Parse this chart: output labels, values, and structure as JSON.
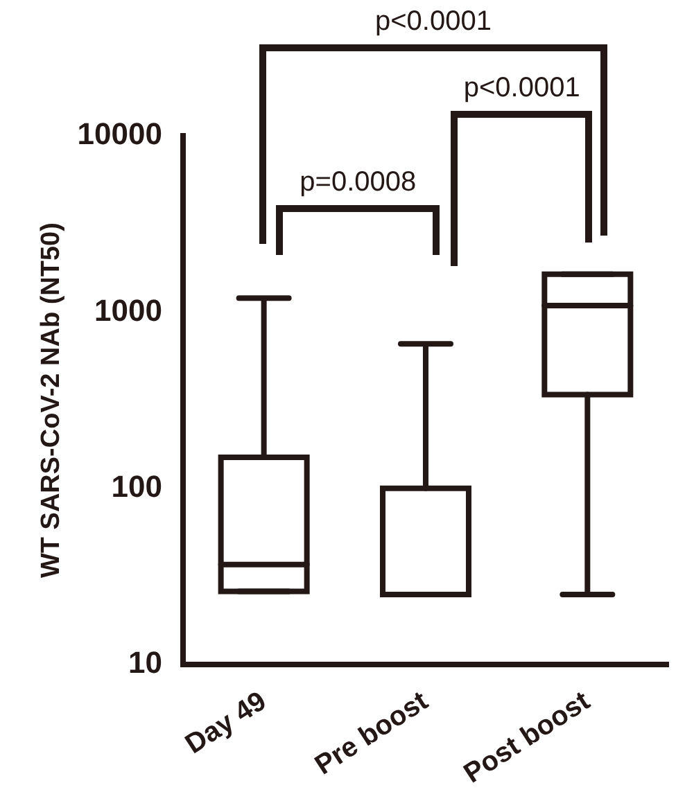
{
  "chart_data": {
    "type": "box",
    "ylabel": "WT SARS-CoV-2 NAb (NT50)",
    "categories": [
      "Day 49",
      "Pre boost",
      "Post boost"
    ],
    "color": "#231815",
    "boxes": [
      {
        "low": 26,
        "q1": 26,
        "median": 37,
        "q3": 150,
        "high": 1200
      },
      {
        "low": 25,
        "q1": 25,
        "median": 25,
        "q3": 100,
        "high": 660
      },
      {
        "low": 25,
        "q1": 340,
        "median": 1090,
        "q3": 1640,
        "high": 1640
      }
    ],
    "log": "y",
    "ylim": [
      10,
      10000
    ],
    "yticks": [
      10,
      100,
      1000,
      10000
    ],
    "annotations": [
      "p=0.0008",
      "p<0.0001",
      "p<0.0001"
    ]
  }
}
